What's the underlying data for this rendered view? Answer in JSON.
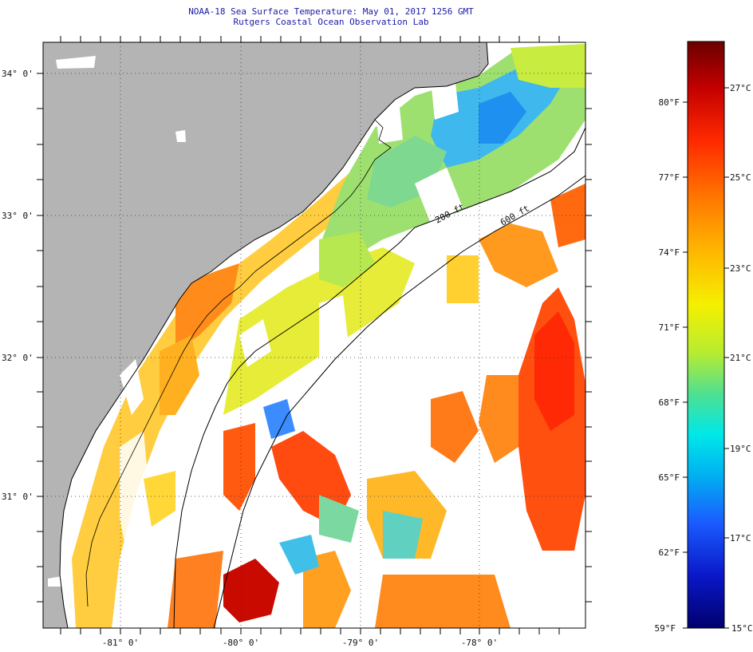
{
  "header": {
    "title_line1": "NOAA-18 Sea Surface Temperature:  May 01, 2017 1256 GMT",
    "title_line2": "Rutgers Coastal Ocean Observation Lab"
  },
  "map": {
    "lat_labels": [
      "34° 0'",
      "33° 0'",
      "32° 0'",
      "31° 0'"
    ],
    "lon_labels": [
      "-81° 0'",
      "-80° 0'",
      "-79° 0'",
      "-78° 0'"
    ],
    "isobaths": [
      "200 ft",
      "600 ft"
    ],
    "colors": {
      "land": "#b4b4b4",
      "cloud": "#ffffff",
      "coastline": "#000000"
    }
  },
  "colorbar": {
    "fahrenheit": [
      "80°F",
      "77°F",
      "74°F",
      "71°F",
      "68°F",
      "65°F",
      "62°F",
      "59°F"
    ],
    "celsius": [
      "27°C",
      "25°C",
      "23°C",
      "21°C",
      "19°C",
      "17°C",
      "15°C"
    ],
    "stops": [
      "#6b0000",
      "#c40000",
      "#ff2a00",
      "#ff7a00",
      "#ffb800",
      "#f4f000",
      "#b8ec30",
      "#50e090",
      "#00e8e8",
      "#00b0f0",
      "#1a5cff",
      "#0a18c8",
      "#00006e"
    ]
  }
}
